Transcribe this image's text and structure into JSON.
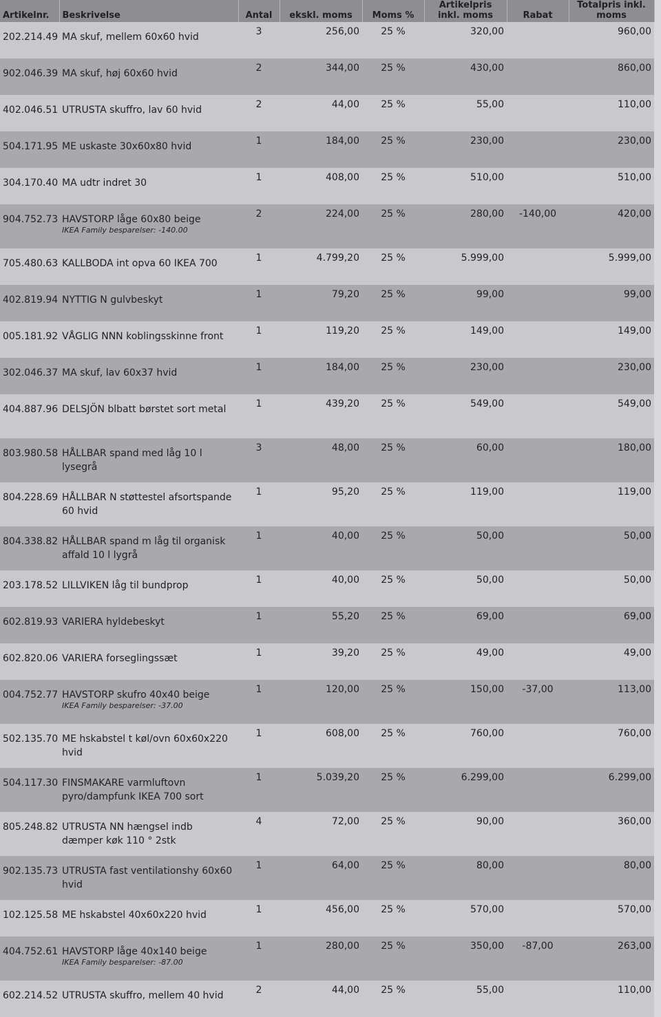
{
  "headers": [
    "Artikelnr.",
    "Beskrivelse",
    "Antal",
    "ekskl. moms",
    "Moms %",
    "Artikelpris inkl. moms",
    "Rabat",
    "Totalpris inkl. moms"
  ],
  "rows": [
    {
      "art": "202.214.49",
      "desc": "MA skuf, mellem 60x60 hvid",
      "qty": "3",
      "ex": "256,00",
      "vat": "25 %",
      "inc": "320,00",
      "disc": "",
      "total": "960,00",
      "note": ""
    },
    {
      "art": "902.046.39",
      "desc": "MA skuf, høj 60x60 hvid",
      "qty": "2",
      "ex": "344,00",
      "vat": "25 %",
      "inc": "430,00",
      "disc": "",
      "total": "860,00",
      "note": ""
    },
    {
      "art": "402.046.51",
      "desc": "UTRUSTA skuffro, lav 60 hvid",
      "qty": "2",
      "ex": "44,00",
      "vat": "25 %",
      "inc": "55,00",
      "disc": "",
      "total": "110,00",
      "note": ""
    },
    {
      "art": "504.171.95",
      "desc": "ME uskaste 30x60x80 hvid",
      "qty": "1",
      "ex": "184,00",
      "vat": "25 %",
      "inc": "230,00",
      "disc": "",
      "total": "230,00",
      "note": ""
    },
    {
      "art": "304.170.40",
      "desc": "MA udtr indret 30",
      "qty": "1",
      "ex": "408,00",
      "vat": "25 %",
      "inc": "510,00",
      "disc": "",
      "total": "510,00",
      "note": ""
    },
    {
      "art": "904.752.73",
      "desc": "HAVSTORP låge 60x80 beige",
      "qty": "2",
      "ex": "224,00",
      "vat": "25 %",
      "inc": "280,00",
      "disc": "-140,00",
      "total": "420,00",
      "note": "IKEA Family besparelser: -140.00"
    },
    {
      "art": "705.480.63",
      "desc": "KALLBODA int opva 60 IKEA 700",
      "qty": "1",
      "ex": "4.799,20",
      "vat": "25 %",
      "inc": "5.999,00",
      "disc": "",
      "total": "5.999,00",
      "note": ""
    },
    {
      "art": "402.819.94",
      "desc": "NYTTIG N gulvbeskyt",
      "qty": "1",
      "ex": "79,20",
      "vat": "25 %",
      "inc": "99,00",
      "disc": "",
      "total": "99,00",
      "note": ""
    },
    {
      "art": "005.181.92",
      "desc": "VÅGLIG NNN koblingsskinne front",
      "qty": "1",
      "ex": "119,20",
      "vat": "25 %",
      "inc": "149,00",
      "disc": "",
      "total": "149,00",
      "note": ""
    },
    {
      "art": "302.046.37",
      "desc": "MA skuf, lav 60x37 hvid",
      "qty": "1",
      "ex": "184,00",
      "vat": "25 %",
      "inc": "230,00",
      "disc": "",
      "total": "230,00",
      "note": ""
    },
    {
      "art": "404.887.96",
      "desc": "DELSJÖN blbatt børstet sort metal",
      "qty": "1",
      "ex": "439,20",
      "vat": "25 %",
      "inc": "549,00",
      "disc": "",
      "total": "549,00",
      "note": ""
    },
    {
      "art": "803.980.58",
      "desc": "HÅLLBAR spand med låg 10 l lysegrå",
      "qty": "3",
      "ex": "48,00",
      "vat": "25 %",
      "inc": "60,00",
      "disc": "",
      "total": "180,00",
      "note": ""
    },
    {
      "art": "804.228.69",
      "desc": "HÅLLBAR N støttestel afsortspande 60 hvid",
      "qty": "1",
      "ex": "95,20",
      "vat": "25 %",
      "inc": "119,00",
      "disc": "",
      "total": "119,00",
      "note": ""
    },
    {
      "art": "804.338.82",
      "desc": "HÅLLBAR spand m låg til organisk affald 10 l lygrå",
      "qty": "1",
      "ex": "40,00",
      "vat": "25 %",
      "inc": "50,00",
      "disc": "",
      "total": "50,00",
      "note": ""
    },
    {
      "art": "203.178.52",
      "desc": "LILLVIKEN låg til bundprop",
      "qty": "1",
      "ex": "40,00",
      "vat": "25 %",
      "inc": "50,00",
      "disc": "",
      "total": "50,00",
      "note": ""
    },
    {
      "art": "602.819.93",
      "desc": "VARIERA hyldebeskyt",
      "qty": "1",
      "ex": "55,20",
      "vat": "25 %",
      "inc": "69,00",
      "disc": "",
      "total": "69,00",
      "note": ""
    },
    {
      "art": "602.820.06",
      "desc": "VARIERA forseglingssæt",
      "qty": "1",
      "ex": "39,20",
      "vat": "25 %",
      "inc": "49,00",
      "disc": "",
      "total": "49,00",
      "note": ""
    },
    {
      "art": "004.752.77",
      "desc": "HAVSTORP skufro 40x40 beige",
      "qty": "1",
      "ex": "120,00",
      "vat": "25 %",
      "inc": "150,00",
      "disc": "-37,00",
      "total": "113,00",
      "note": "IKEA Family besparelser: -37.00"
    },
    {
      "art": "502.135.70",
      "desc": "ME hskabstel t køl/ovn 60x60x220 hvid",
      "qty": "1",
      "ex": "608,00",
      "vat": "25 %",
      "inc": "760,00",
      "disc": "",
      "total": "760,00",
      "note": ""
    },
    {
      "art": "504.117.30",
      "desc": "FINSMAKARE varmluftovn pyro/dampfunk IKEA 700 sort",
      "qty": "1",
      "ex": "5.039,20",
      "vat": "25 %",
      "inc": "6.299,00",
      "disc": "",
      "total": "6.299,00",
      "note": ""
    },
    {
      "art": "805.248.82",
      "desc": "UTRUSTA NN hængsel indb dæmper køk 110 ° 2stk",
      "qty": "4",
      "ex": "72,00",
      "vat": "25 %",
      "inc": "90,00",
      "disc": "",
      "total": "360,00",
      "note": ""
    },
    {
      "art": "902.135.73",
      "desc": "UTRUSTA fast ventilationshy 60x60 hvid",
      "qty": "1",
      "ex": "64,00",
      "vat": "25 %",
      "inc": "80,00",
      "disc": "",
      "total": "80,00",
      "note": ""
    },
    {
      "art": "102.125.58",
      "desc": "ME hskabstel 40x60x220 hvid",
      "qty": "1",
      "ex": "456,00",
      "vat": "25 %",
      "inc": "570,00",
      "disc": "",
      "total": "570,00",
      "note": ""
    },
    {
      "art": "404.752.61",
      "desc": "HAVSTORP låge 40x140 beige",
      "qty": "1",
      "ex": "280,00",
      "vat": "25 %",
      "inc": "350,00",
      "disc": "-87,00",
      "total": "263,00",
      "note": "IKEA Family besparelser: -87.00"
    },
    {
      "art": "602.214.52",
      "desc": "UTRUSTA skuffro, mellem 40 hvid",
      "qty": "2",
      "ex": "44,00",
      "vat": "25 %",
      "inc": "55,00",
      "disc": "",
      "total": "110,00",
      "note": ""
    }
  ]
}
